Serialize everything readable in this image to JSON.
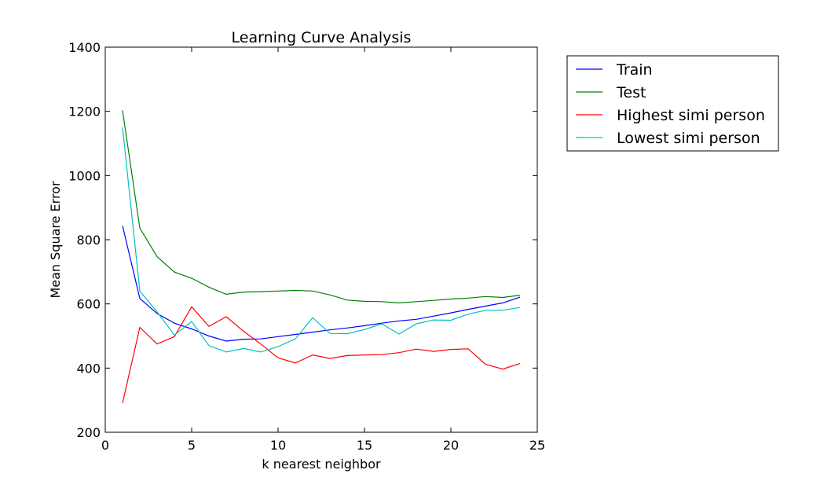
{
  "chart_data": {
    "type": "line",
    "title": "Learning Curve Analysis",
    "xlabel": "k nearest neighbor",
    "ylabel": "Mean Square Error",
    "xlim": [
      0,
      25
    ],
    "ylim": [
      200,
      1400
    ],
    "xticks": [
      0,
      5,
      10,
      15,
      20,
      25
    ],
    "yticks": [
      200,
      400,
      600,
      800,
      1000,
      1200,
      1400
    ],
    "grid": false,
    "legend": "outside-right-top",
    "x": [
      1,
      2,
      3,
      4,
      5,
      6,
      7,
      8,
      9,
      10,
      11,
      12,
      13,
      14,
      15,
      16,
      17,
      18,
      19,
      20,
      21,
      22,
      23,
      24
    ],
    "series": [
      {
        "name": "Train",
        "color": "#0000ff",
        "values": [
          843,
          617,
          570,
          540,
          522,
          500,
          484,
          490,
          491,
          498,
          505,
          512,
          519,
          525,
          532,
          540,
          547,
          552,
          562,
          572,
          583,
          593,
          603,
          621
        ]
      },
      {
        "name": "Test",
        "color": "#008000",
        "values": [
          1203,
          836,
          747,
          699,
          680,
          652,
          630,
          637,
          638,
          640,
          642,
          640,
          628,
          612,
          608,
          607,
          603,
          607,
          611,
          615,
          618,
          623,
          620,
          627
        ]
      },
      {
        "name": "Highest simi person",
        "color": "#ff0000",
        "values": [
          291,
          527,
          475,
          498,
          591,
          530,
          560,
          515,
          475,
          432,
          416,
          441,
          430,
          439,
          441,
          442,
          448,
          459,
          452,
          458,
          460,
          412,
          397,
          414
        ]
      },
      {
        "name": "Lowest simi person",
        "color": "#00bfbf",
        "values": [
          1150,
          640,
          575,
          503,
          545,
          470,
          450,
          461,
          450,
          467,
          491,
          557,
          508,
          507,
          520,
          538,
          506,
          538,
          550,
          549,
          568,
          580,
          580,
          589
        ]
      }
    ]
  }
}
